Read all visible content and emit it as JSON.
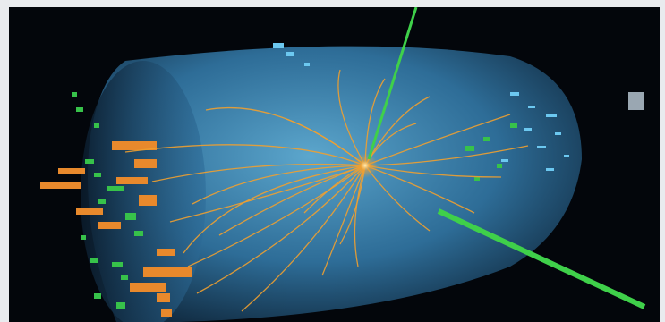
{
  "image": {
    "subject": "particle-collision-event-display",
    "colors": {
      "background": "#03060b",
      "frame": "#e9ebee",
      "detector": "#4fb3e8",
      "tracks": "#f0a030",
      "calorimeter_orange": "#e8892c",
      "calorimeter_green": "#37c24a",
      "muon_beam": "#3fd04a"
    }
  }
}
